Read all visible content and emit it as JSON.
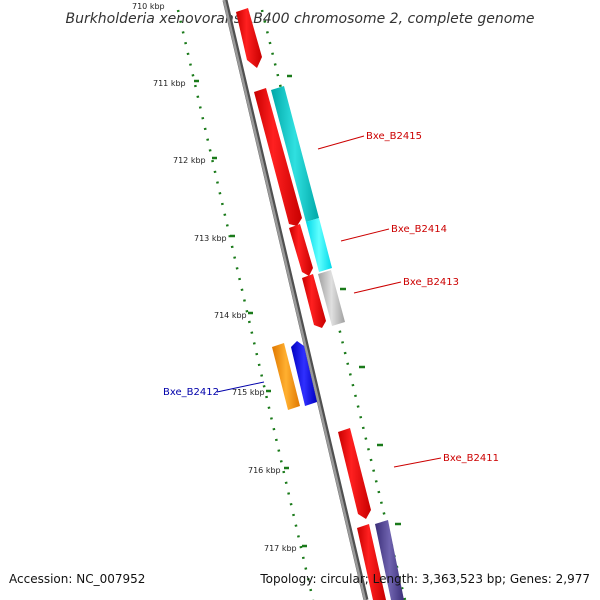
{
  "title": "Burkholderia xenovorans LB400 chromosome 2, complete genome",
  "ticks": [
    "710 kbp",
    "711 kbp",
    "712 kbp",
    "713 kbp",
    "714 kbp",
    "715 kbp",
    "716 kbp",
    "717 kbp"
  ],
  "genes": [
    {
      "id": "Bxe_B2415",
      "color": "#cc0000"
    },
    {
      "id": "Bxe_B2414",
      "color": "#cc0000"
    },
    {
      "id": "Bxe_B2413",
      "color": "#cc0000"
    },
    {
      "id": "Bxe_B2412",
      "color": "#0000aa"
    },
    {
      "id": "Bxe_B2411",
      "color": "#cc0000"
    }
  ],
  "footer": {
    "accession": "Accession: NC_007952",
    "summary": "Topology: circular; Length: 3,363,523 bp; Genes: 2,977"
  },
  "colors": {
    "backbone": "#808080",
    "cds_forward": "#ff0000",
    "rna_feature": "#00cccc",
    "grey_feature": "#b0b0b0",
    "orange_feature": "#ff8c00",
    "blue_feature": "#0000ff",
    "purple_feature": "#4b3c8c",
    "tick_color": "#1a7a1a"
  }
}
